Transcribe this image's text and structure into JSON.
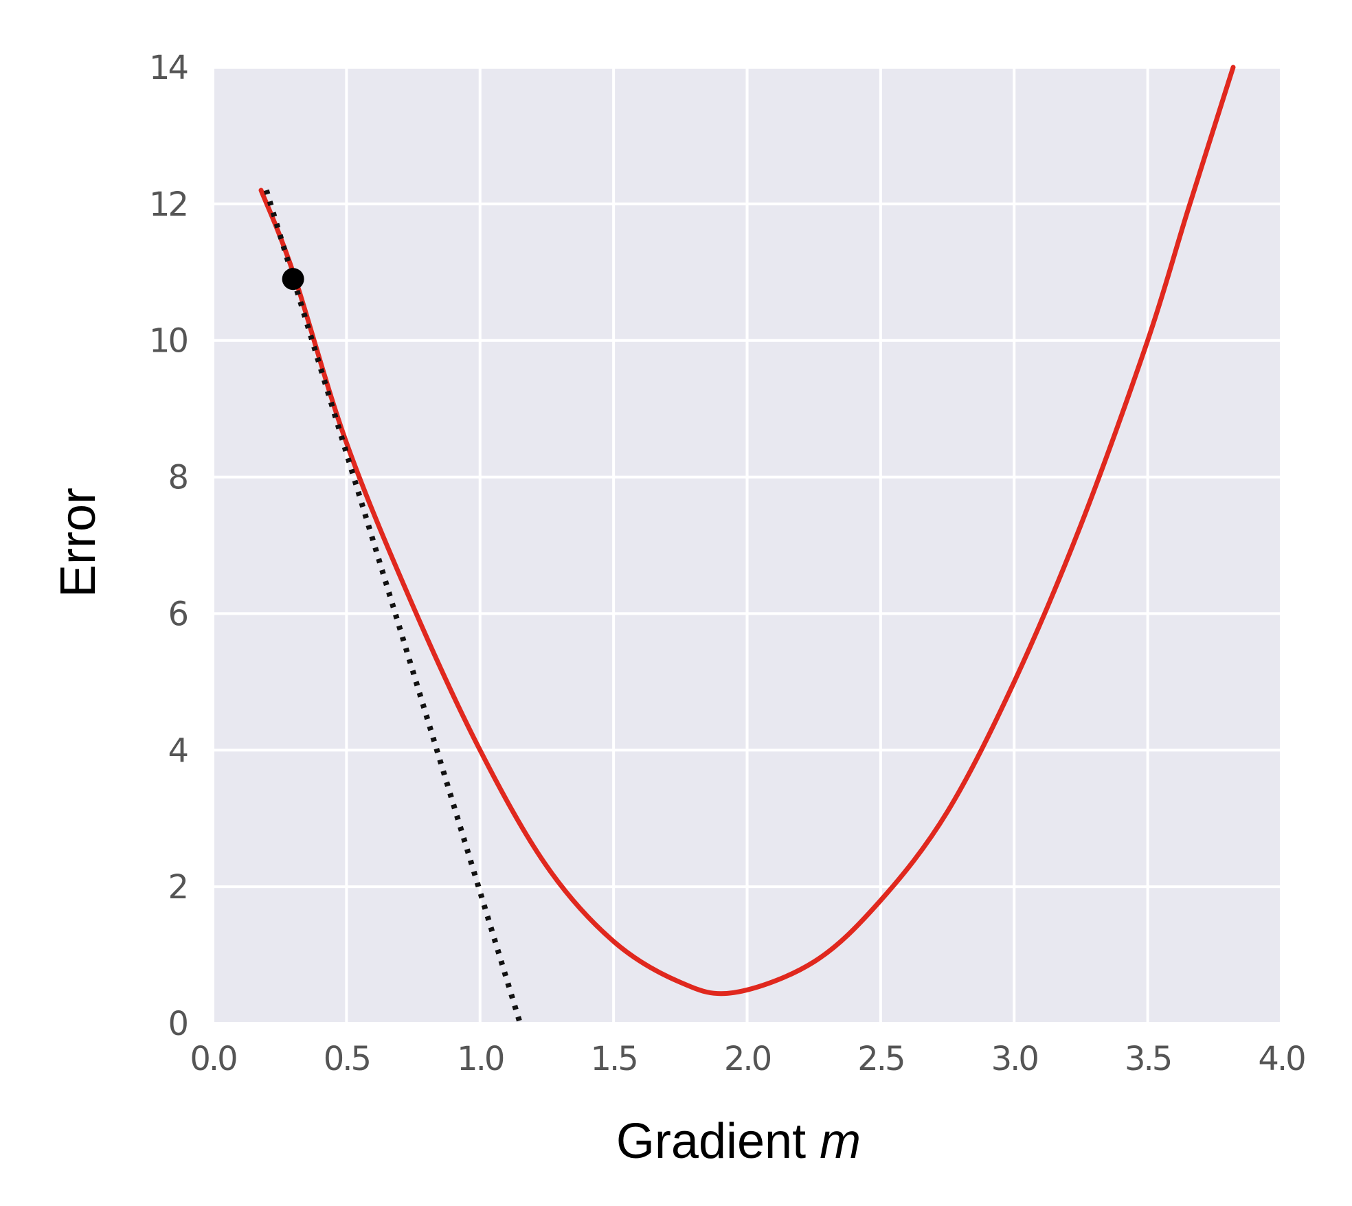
{
  "chart_data": {
    "type": "line",
    "xlabel": "Gradient",
    "xlabel_variable": "m",
    "ylabel": "Error",
    "xlim": [
      0.0,
      4.0
    ],
    "ylim": [
      0,
      14
    ],
    "x_ticks": [
      "0.0",
      "0.5",
      "1.0",
      "1.5",
      "2.0",
      "2.5",
      "3.0",
      "3.5",
      "4.0"
    ],
    "y_ticks": [
      "0",
      "2",
      "4",
      "6",
      "8",
      "10",
      "12",
      "14"
    ],
    "grid": true,
    "background_color": "#e8e8f0",
    "series": [
      {
        "style": "solid",
        "color": "#e0281e",
        "x": [
          0.18,
          0.3,
          0.5,
          0.75,
          1.0,
          1.25,
          1.5,
          1.75,
          1.95,
          2.25,
          2.5,
          2.75,
          3.0,
          3.25,
          3.5,
          3.65,
          3.82
        ],
        "y": [
          12.2,
          11.0,
          8.5,
          6.1,
          4.0,
          2.3,
          1.2,
          0.6,
          0.45,
          0.9,
          1.8,
          3.1,
          5.0,
          7.3,
          10.0,
          11.9,
          14.0
        ]
      },
      {
        "style": "dotted",
        "color": "#111111",
        "x": [
          0.2,
          1.15
        ],
        "y": [
          12.2,
          0.0
        ]
      }
    ],
    "points": [
      {
        "x": 0.3,
        "y": 10.9,
        "color": "#000000"
      }
    ]
  }
}
